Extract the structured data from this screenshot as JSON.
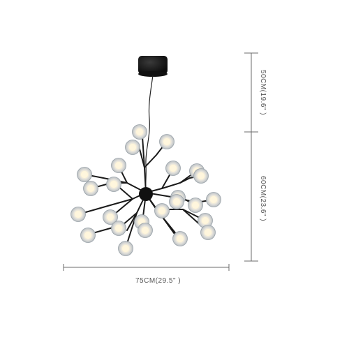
{
  "product": {
    "image_subject": "sputnik-bubble-chandelier",
    "color_fixture": "#1a1a1a",
    "color_glass": "#d9dde0",
    "color_bulb": "#fff6dc",
    "color_dimension_line": "#6b6b6b"
  },
  "dimensions": {
    "width_label": "75CM(29.5\" )",
    "top_height_label": "50CM(19.6\" )",
    "bottom_height_label": "60CM(23.6\" )"
  }
}
